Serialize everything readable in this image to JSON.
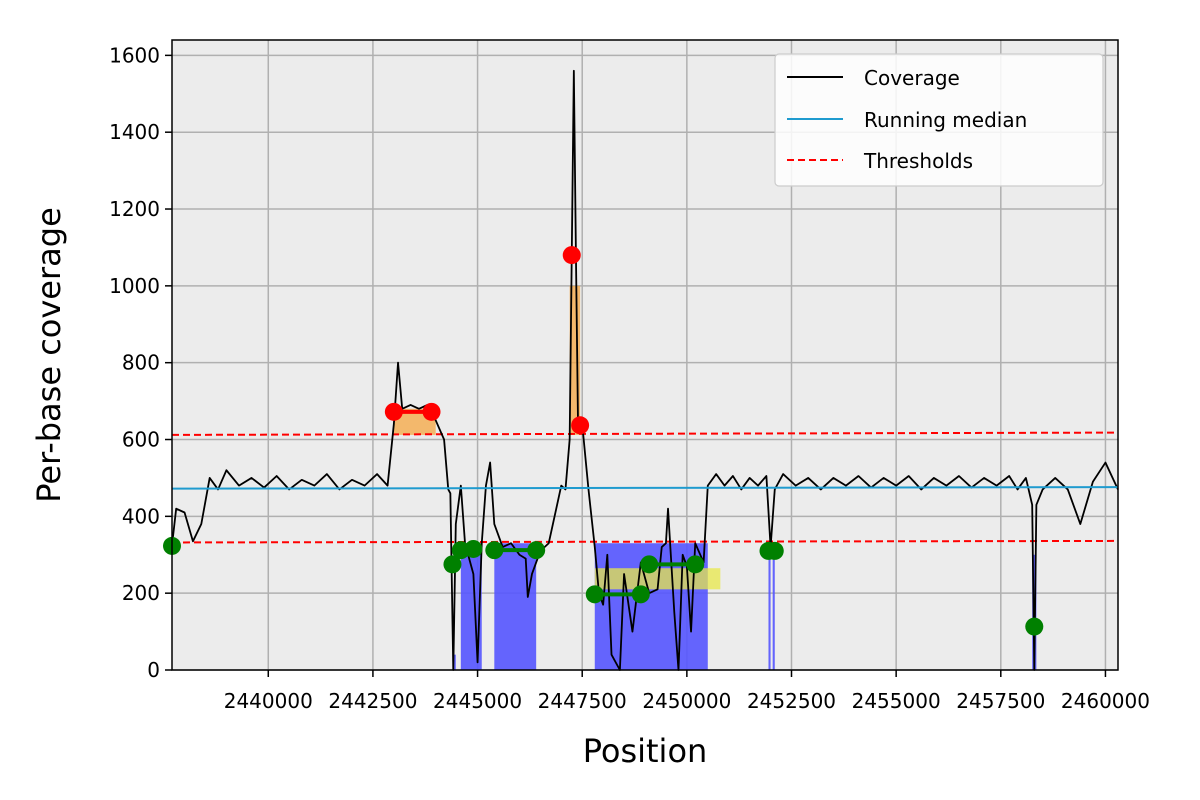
{
  "chart_data": {
    "type": "line",
    "xlabel": "Position",
    "ylabel": "Per-base coverage",
    "xlim": [
      2437700,
      2460300
    ],
    "ylim": [
      0,
      1640
    ],
    "x_ticks": [
      2440000,
      2442500,
      2445000,
      2447500,
      2450000,
      2452500,
      2455000,
      2457500,
      2460000
    ],
    "x_tick_labels": [
      "2440000",
      "2442500",
      "2445000",
      "2447500",
      "2450000",
      "2452500",
      "2455000",
      "2457500",
      "2460000"
    ],
    "y_ticks": [
      0,
      200,
      400,
      600,
      800,
      1000,
      1200,
      1400,
      1600
    ],
    "y_tick_labels": [
      "0",
      "200",
      "400",
      "600",
      "800",
      "1000",
      "1200",
      "1400",
      "1600"
    ],
    "grid": true,
    "legend_position": "top-right",
    "legend": [
      {
        "label": "Coverage",
        "color": "#000000",
        "style": "solid"
      },
      {
        "label": "Running median",
        "color": "#1f9bcf",
        "style": "solid"
      },
      {
        "label": "Thresholds",
        "color": "#ff0000",
        "style": "dashed"
      }
    ],
    "series": [
      {
        "name": "Coverage",
        "color": "#000000",
        "points": [
          [
            2437700,
            325
          ],
          [
            2437800,
            420
          ],
          [
            2438000,
            410
          ],
          [
            2438200,
            335
          ],
          [
            2438400,
            380
          ],
          [
            2438600,
            500
          ],
          [
            2438800,
            470
          ],
          [
            2439000,
            520
          ],
          [
            2439300,
            480
          ],
          [
            2439600,
            500
          ],
          [
            2439900,
            475
          ],
          [
            2440200,
            505
          ],
          [
            2440500,
            470
          ],
          [
            2440800,
            495
          ],
          [
            2441100,
            480
          ],
          [
            2441400,
            510
          ],
          [
            2441700,
            470
          ],
          [
            2442000,
            495
          ],
          [
            2442300,
            480
          ],
          [
            2442600,
            510
          ],
          [
            2442850,
            480
          ],
          [
            2443000,
            640
          ],
          [
            2443100,
            800
          ],
          [
            2443200,
            680
          ],
          [
            2443400,
            690
          ],
          [
            2443600,
            680
          ],
          [
            2443800,
            690
          ],
          [
            2444000,
            650
          ],
          [
            2444200,
            600
          ],
          [
            2444300,
            470
          ],
          [
            2444350,
            460
          ],
          [
            2444420,
            0
          ],
          [
            2444480,
            380
          ],
          [
            2444600,
            480
          ],
          [
            2444700,
            330
          ],
          [
            2444900,
            250
          ],
          [
            2445000,
            20
          ],
          [
            2445100,
            330
          ],
          [
            2445200,
            480
          ],
          [
            2445300,
            540
          ],
          [
            2445400,
            380
          ],
          [
            2445600,
            320
          ],
          [
            2445800,
            330
          ],
          [
            2446000,
            300
          ],
          [
            2446150,
            290
          ],
          [
            2446200,
            190
          ],
          [
            2446300,
            250
          ],
          [
            2446500,
            310
          ],
          [
            2446700,
            330
          ],
          [
            2446900,
            430
          ],
          [
            2447000,
            480
          ],
          [
            2447100,
            470
          ],
          [
            2447200,
            600
          ],
          [
            2447250,
            1080
          ],
          [
            2447300,
            1560
          ],
          [
            2447350,
            1080
          ],
          [
            2447400,
            640
          ],
          [
            2447500,
            640
          ],
          [
            2447650,
            470
          ],
          [
            2447800,
            320
          ],
          [
            2447900,
            200
          ],
          [
            2448000,
            170
          ],
          [
            2448100,
            300
          ],
          [
            2448200,
            40
          ],
          [
            2448400,
            0
          ],
          [
            2448500,
            250
          ],
          [
            2448700,
            100
          ],
          [
            2448900,
            280
          ],
          [
            2449100,
            200
          ],
          [
            2449300,
            210
          ],
          [
            2449400,
            320
          ],
          [
            2449500,
            330
          ],
          [
            2449550,
            420
          ],
          [
            2449700,
            150
          ],
          [
            2449800,
            0
          ],
          [
            2449900,
            300
          ],
          [
            2450000,
            270
          ],
          [
            2450100,
            100
          ],
          [
            2450200,
            330
          ],
          [
            2450400,
            280
          ],
          [
            2450500,
            480
          ],
          [
            2450700,
            510
          ],
          [
            2450900,
            480
          ],
          [
            2451100,
            505
          ],
          [
            2451300,
            470
          ],
          [
            2451500,
            500
          ],
          [
            2451700,
            480
          ],
          [
            2451900,
            505
          ],
          [
            2452000,
            320
          ],
          [
            2452100,
            470
          ],
          [
            2452300,
            510
          ],
          [
            2452600,
            480
          ],
          [
            2452900,
            500
          ],
          [
            2453200,
            470
          ],
          [
            2453500,
            500
          ],
          [
            2453800,
            480
          ],
          [
            2454100,
            505
          ],
          [
            2454400,
            475
          ],
          [
            2454700,
            500
          ],
          [
            2455000,
            480
          ],
          [
            2455300,
            505
          ],
          [
            2455600,
            470
          ],
          [
            2455900,
            500
          ],
          [
            2456200,
            480
          ],
          [
            2456500,
            505
          ],
          [
            2456800,
            475
          ],
          [
            2457100,
            500
          ],
          [
            2457400,
            480
          ],
          [
            2457700,
            505
          ],
          [
            2457900,
            470
          ],
          [
            2458100,
            500
          ],
          [
            2458250,
            430
          ],
          [
            2458300,
            0
          ],
          [
            2458350,
            430
          ],
          [
            2458500,
            470
          ],
          [
            2458800,
            500
          ],
          [
            2459100,
            470
          ],
          [
            2459400,
            380
          ],
          [
            2459700,
            490
          ],
          [
            2460000,
            540
          ],
          [
            2460300,
            470
          ]
        ]
      },
      {
        "name": "Running median",
        "color": "#1f9bcf",
        "points": [
          [
            2437700,
            472
          ],
          [
            2460300,
            476
          ]
        ]
      }
    ],
    "thresholds": [
      {
        "color": "#ff0000",
        "style": "dashed",
        "points": [
          [
            2437700,
            612
          ],
          [
            2460300,
            618
          ]
        ]
      },
      {
        "color": "#ff0000",
        "style": "dashed",
        "points": [
          [
            2437700,
            332
          ],
          [
            2460300,
            336
          ]
        ]
      }
    ],
    "low_regions": [
      {
        "x0": 2444400,
        "x1": 2444480,
        "y": 40
      },
      {
        "x0": 2444600,
        "x1": 2445100,
        "y": 330
      },
      {
        "x0": 2445400,
        "x1": 2446400,
        "y": 330
      },
      {
        "x0": 2447800,
        "x1": 2450500,
        "y": 330
      },
      {
        "x0": 2451950,
        "x1": 2452000,
        "y": 320
      },
      {
        "x0": 2452050,
        "x1": 2452100,
        "y": 320
      },
      {
        "x0": 2458250,
        "x1": 2458350,
        "y": 300
      }
    ],
    "high_regions": [
      {
        "x0": 2443000,
        "x1": 2444000,
        "y0": 612,
        "y1": 680,
        "color": "#f5a742"
      },
      {
        "x0": 2447200,
        "x1": 2447450,
        "y0": 612,
        "y1": 1000,
        "color": "#f5a742"
      },
      {
        "x0": 2447800,
        "x1": 2450800,
        "y0": 210,
        "y1": 265,
        "color": "#e8e84a"
      }
    ],
    "red_markers": [
      [
        2443000,
        672
      ],
      [
        2443900,
        672
      ],
      [
        2447250,
        1080
      ],
      [
        2447450,
        637
      ]
    ],
    "red_segments": [
      [
        [
          2443000,
          672
        ],
        [
          2443900,
          672
        ]
      ]
    ],
    "green_markers": [
      [
        2437700,
        323
      ],
      [
        2444400,
        275
      ],
      [
        2444600,
        312
      ],
      [
        2444900,
        315
      ],
      [
        2445400,
        312
      ],
      [
        2446400,
        312
      ],
      [
        2447800,
        197
      ],
      [
        2448900,
        197
      ],
      [
        2449100,
        275
      ],
      [
        2450200,
        275
      ],
      [
        2451950,
        310
      ],
      [
        2452100,
        310
      ],
      [
        2458300,
        113
      ]
    ],
    "green_segments": [
      [
        [
          2444600,
          312
        ],
        [
          2444900,
          315
        ]
      ],
      [
        [
          2445400,
          312
        ],
        [
          2446400,
          312
        ]
      ],
      [
        [
          2447800,
          197
        ],
        [
          2448900,
          197
        ]
      ],
      [
        [
          2449100,
          275
        ],
        [
          2450200,
          275
        ]
      ],
      [
        [
          2451950,
          310
        ],
        [
          2452100,
          310
        ]
      ]
    ]
  }
}
